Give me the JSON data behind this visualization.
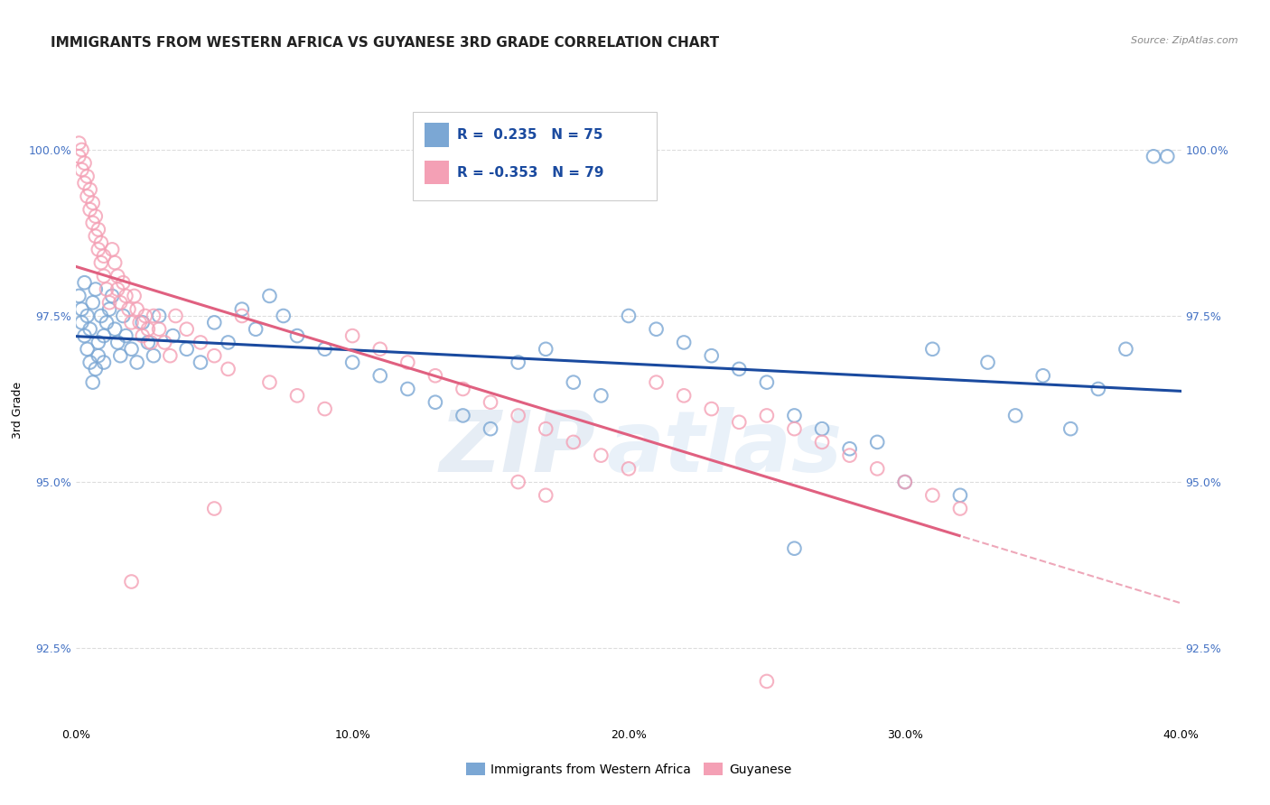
{
  "title": "IMMIGRANTS FROM WESTERN AFRICA VS GUYANESE 3RD GRADE CORRELATION CHART",
  "source": "Source: ZipAtlas.com",
  "ylabel": "3rd Grade",
  "x_min": 0.0,
  "x_max": 0.4,
  "y_min": 0.9135,
  "y_max": 1.008,
  "y_ticks": [
    0.925,
    0.95,
    0.975,
    1.0
  ],
  "y_tick_labels": [
    "92.5%",
    "95.0%",
    "97.5%",
    "100.0%"
  ],
  "x_ticks": [
    0.0,
    0.1,
    0.2,
    0.3,
    0.4
  ],
  "x_tick_labels": [
    "0.0%",
    "10.0%",
    "20.0%",
    "30.0%",
    "40.0%"
  ],
  "blue_color": "#7ba7d4",
  "pink_color": "#f4a0b5",
  "blue_line_color": "#1a4a9f",
  "pink_line_color": "#e06080",
  "background_color": "#ffffff",
  "grid_color": "#dddddd",
  "title_fontsize": 11,
  "axis_fontsize": 9,
  "R_blue": 0.235,
  "N_blue": 75,
  "R_pink": -0.353,
  "N_pink": 79,
  "legend_label_blue": "Immigrants from Western Africa",
  "legend_label_pink": "Guyanese",
  "watermark_zip": "ZIP",
  "watermark_atlas": "atlas",
  "blue_x": [
    0.001,
    0.002,
    0.002,
    0.003,
    0.003,
    0.004,
    0.004,
    0.005,
    0.005,
    0.006,
    0.006,
    0.007,
    0.007,
    0.008,
    0.008,
    0.009,
    0.01,
    0.01,
    0.011,
    0.012,
    0.013,
    0.014,
    0.015,
    0.016,
    0.017,
    0.018,
    0.02,
    0.022,
    0.024,
    0.026,
    0.028,
    0.03,
    0.035,
    0.04,
    0.045,
    0.05,
    0.055,
    0.06,
    0.065,
    0.07,
    0.075,
    0.08,
    0.09,
    0.1,
    0.11,
    0.12,
    0.13,
    0.14,
    0.15,
    0.16,
    0.17,
    0.18,
    0.19,
    0.2,
    0.21,
    0.22,
    0.23,
    0.24,
    0.25,
    0.26,
    0.27,
    0.29,
    0.31,
    0.33,
    0.35,
    0.37,
    0.39,
    0.3,
    0.32,
    0.34,
    0.36,
    0.38,
    0.395,
    0.28,
    0.26
  ],
  "blue_y": [
    0.978,
    0.976,
    0.974,
    0.98,
    0.972,
    0.97,
    0.975,
    0.973,
    0.968,
    0.977,
    0.965,
    0.979,
    0.967,
    0.971,
    0.969,
    0.975,
    0.972,
    0.968,
    0.974,
    0.976,
    0.978,
    0.973,
    0.971,
    0.969,
    0.975,
    0.972,
    0.97,
    0.968,
    0.974,
    0.971,
    0.969,
    0.975,
    0.972,
    0.97,
    0.968,
    0.974,
    0.971,
    0.976,
    0.973,
    0.978,
    0.975,
    0.972,
    0.97,
    0.968,
    0.966,
    0.964,
    0.962,
    0.96,
    0.958,
    0.968,
    0.97,
    0.965,
    0.963,
    0.975,
    0.973,
    0.971,
    0.969,
    0.967,
    0.965,
    0.96,
    0.958,
    0.956,
    0.97,
    0.968,
    0.966,
    0.964,
    0.999,
    0.95,
    0.948,
    0.96,
    0.958,
    0.97,
    0.999,
    0.955,
    0.94
  ],
  "pink_x": [
    0.001,
    0.001,
    0.002,
    0.002,
    0.003,
    0.003,
    0.004,
    0.004,
    0.005,
    0.005,
    0.006,
    0.006,
    0.007,
    0.007,
    0.008,
    0.008,
    0.009,
    0.009,
    0.01,
    0.01,
    0.011,
    0.012,
    0.013,
    0.014,
    0.015,
    0.015,
    0.016,
    0.017,
    0.018,
    0.019,
    0.02,
    0.021,
    0.022,
    0.023,
    0.024,
    0.025,
    0.026,
    0.027,
    0.028,
    0.03,
    0.032,
    0.034,
    0.036,
    0.04,
    0.045,
    0.05,
    0.055,
    0.06,
    0.07,
    0.08,
    0.09,
    0.1,
    0.11,
    0.12,
    0.13,
    0.14,
    0.15,
    0.16,
    0.17,
    0.18,
    0.19,
    0.2,
    0.21,
    0.22,
    0.23,
    0.24,
    0.25,
    0.26,
    0.27,
    0.28,
    0.29,
    0.3,
    0.31,
    0.32,
    0.16,
    0.17,
    0.05,
    0.02,
    0.25
  ],
  "pink_y": [
    0.999,
    1.001,
    0.997,
    1.0,
    0.995,
    0.998,
    0.993,
    0.996,
    0.991,
    0.994,
    0.989,
    0.992,
    0.987,
    0.99,
    0.985,
    0.988,
    0.983,
    0.986,
    0.981,
    0.984,
    0.979,
    0.977,
    0.985,
    0.983,
    0.981,
    0.979,
    0.977,
    0.98,
    0.978,
    0.976,
    0.974,
    0.978,
    0.976,
    0.974,
    0.972,
    0.975,
    0.973,
    0.971,
    0.975,
    0.973,
    0.971,
    0.969,
    0.975,
    0.973,
    0.971,
    0.969,
    0.967,
    0.975,
    0.965,
    0.963,
    0.961,
    0.972,
    0.97,
    0.968,
    0.966,
    0.964,
    0.962,
    0.96,
    0.958,
    0.956,
    0.954,
    0.952,
    0.965,
    0.963,
    0.961,
    0.959,
    0.96,
    0.958,
    0.956,
    0.954,
    0.952,
    0.95,
    0.948,
    0.946,
    0.95,
    0.948,
    0.946,
    0.935,
    0.92
  ]
}
